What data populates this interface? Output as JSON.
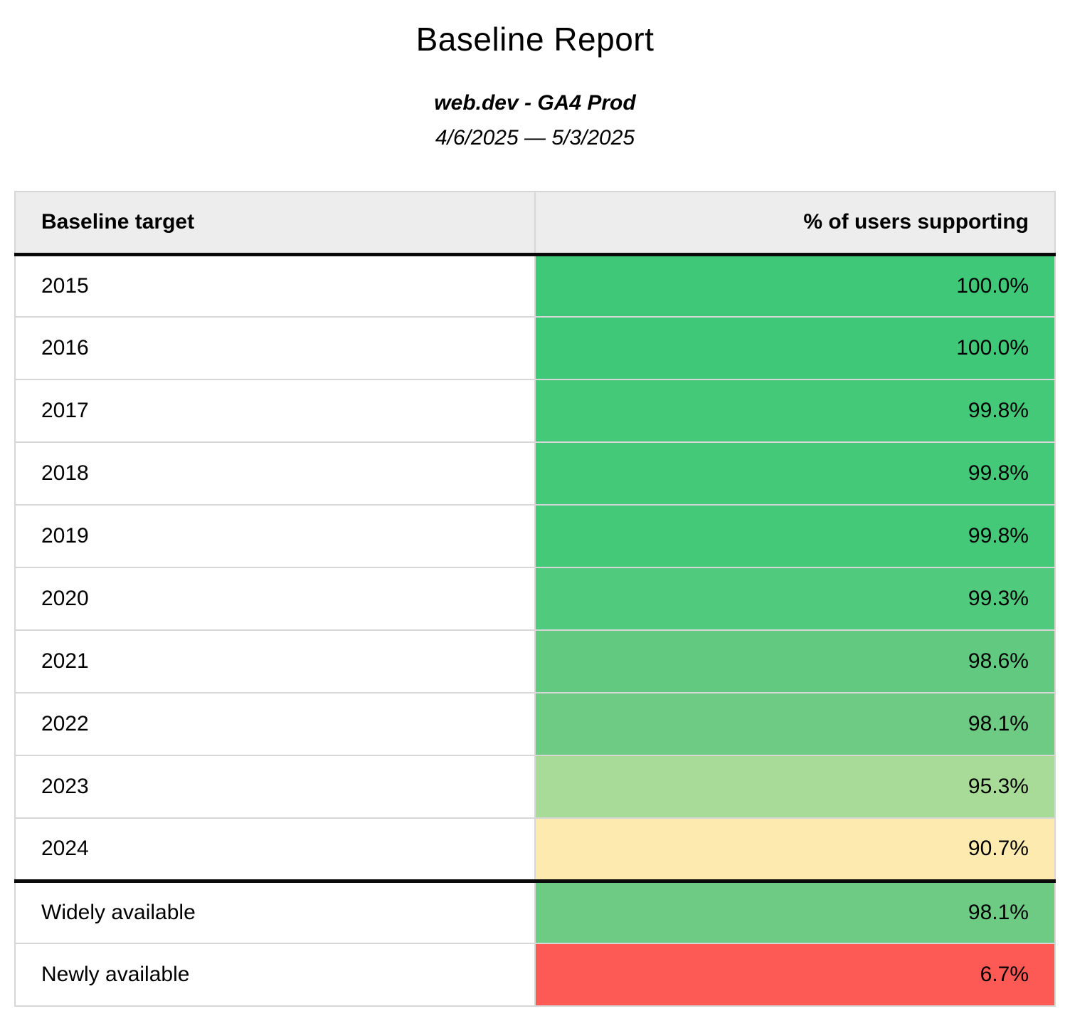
{
  "report": {
    "title": "Baseline Report",
    "property_label": "web.dev - GA4 Prod",
    "date_range": "4/6/2025 — 5/3/2025"
  },
  "table": {
    "columns": [
      "Baseline target",
      "% of users supporting"
    ],
    "rows": [
      {
        "target": "2015",
        "pct": "100.0%",
        "color": "#3ec877",
        "section": "year"
      },
      {
        "target": "2016",
        "pct": "100.0%",
        "color": "#3ec877",
        "section": "year"
      },
      {
        "target": "2017",
        "pct": "99.8%",
        "color": "#44c979",
        "section": "year"
      },
      {
        "target": "2018",
        "pct": "99.8%",
        "color": "#44c979",
        "section": "year"
      },
      {
        "target": "2019",
        "pct": "99.8%",
        "color": "#44c979",
        "section": "year"
      },
      {
        "target": "2020",
        "pct": "99.3%",
        "color": "#50ca7c",
        "section": "year"
      },
      {
        "target": "2021",
        "pct": "98.6%",
        "color": "#61ca80",
        "section": "year"
      },
      {
        "target": "2022",
        "pct": "98.1%",
        "color": "#6ecb84",
        "section": "year"
      },
      {
        "target": "2023",
        "pct": "95.3%",
        "color": "#a8db97",
        "section": "year"
      },
      {
        "target": "2024",
        "pct": "90.7%",
        "color": "#fdeaae",
        "section": "year"
      },
      {
        "target": "Widely available",
        "pct": "98.1%",
        "color": "#6ecb84",
        "section": "summary"
      },
      {
        "target": "Newly available",
        "pct": "6.7%",
        "color": "#fe5a55",
        "section": "summary"
      }
    ]
  },
  "colors": {
    "header_background": "#ededed",
    "row_divider": "#d7d7d7",
    "section_divider": "#0a0a0a",
    "green_high": "#3ec877",
    "green_mid": "#6ecb84",
    "green_low": "#a8db97",
    "yellow": "#fdeaae",
    "red": "#fe5a55"
  },
  "chart_data": {
    "type": "table",
    "title": "Baseline Report",
    "subtitle": "web.dev - GA4 Prod",
    "date_range": "4/6/2025 — 5/3/2025",
    "columns": [
      "Baseline target",
      "% of users supporting"
    ],
    "categories": [
      "2015",
      "2016",
      "2017",
      "2018",
      "2019",
      "2020",
      "2021",
      "2022",
      "2023",
      "2024",
      "Widely available",
      "Newly available"
    ],
    "values": [
      100.0,
      100.0,
      99.8,
      99.8,
      99.8,
      99.3,
      98.6,
      98.1,
      95.3,
      90.7,
      98.1,
      6.7
    ],
    "value_unit": "%",
    "color_scale": "green (high) → yellow (low) → red (very low), applied per value cell"
  }
}
